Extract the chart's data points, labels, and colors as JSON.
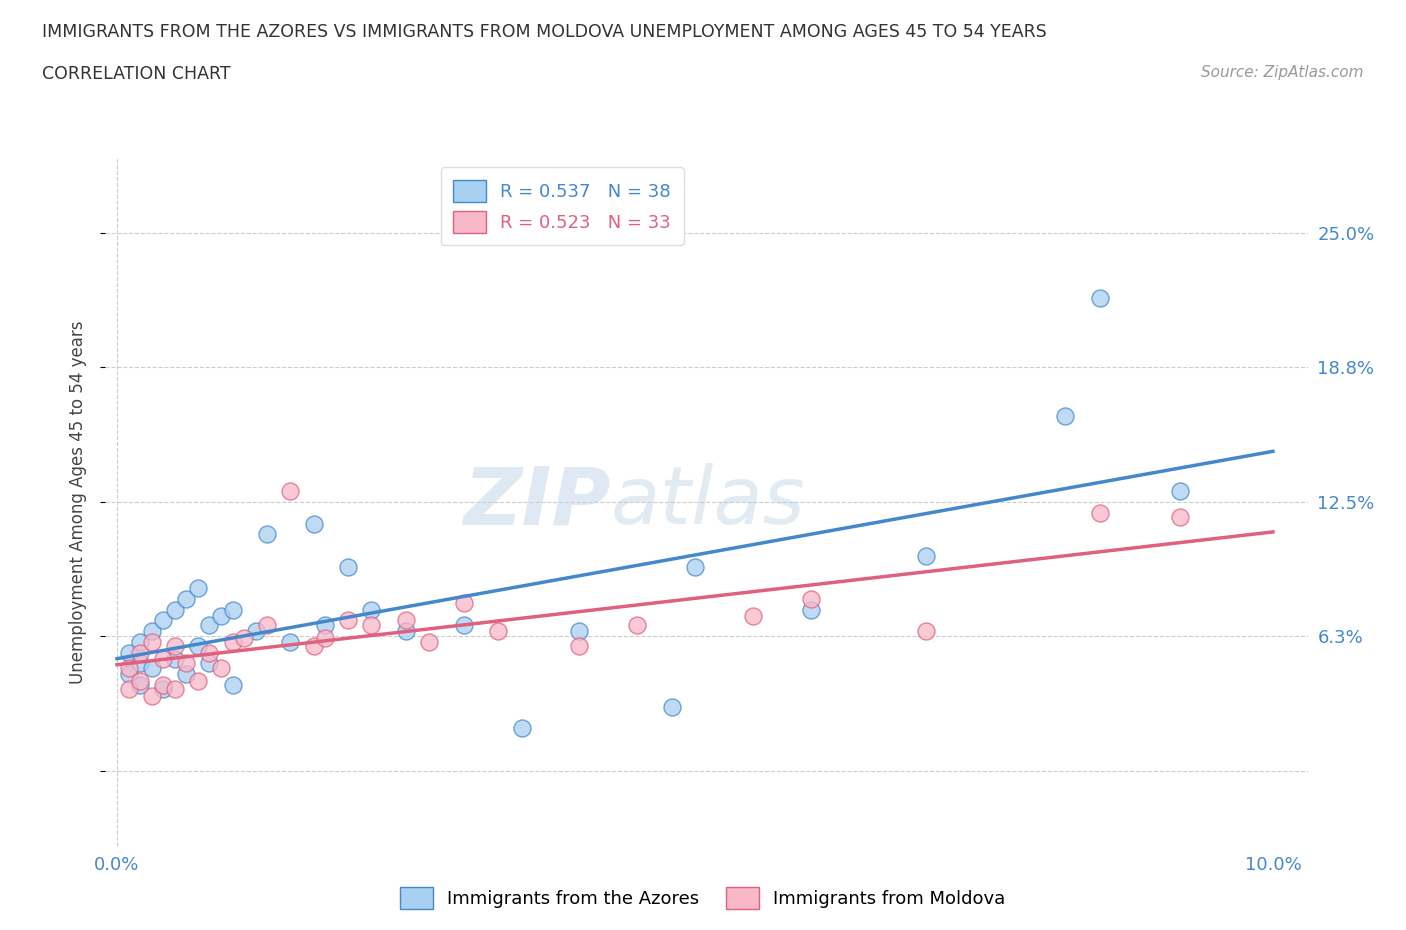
{
  "title_line1": "IMMIGRANTS FROM THE AZORES VS IMMIGRANTS FROM MOLDOVA UNEMPLOYMENT AMONG AGES 45 TO 54 YEARS",
  "title_line2": "CORRELATION CHART",
  "source": "Source: ZipAtlas.com",
  "ylabel": "Unemployment Among Ages 45 to 54 years",
  "xlim": [
    -0.001,
    0.103
  ],
  "ylim": [
    -0.035,
    0.285
  ],
  "ytick_vals": [
    0.0,
    0.063,
    0.125,
    0.188,
    0.25
  ],
  "ytick_labels": [
    "",
    "6.3%",
    "12.5%",
    "18.8%",
    "25.0%"
  ],
  "xtick_vals": [
    0.0,
    0.1
  ],
  "xtick_labels": [
    "0.0%",
    "10.0%"
  ],
  "color_azores": "#a8d0f0",
  "color_moldova": "#f8b8c8",
  "line_color_azores": "#4488cc",
  "line_color_moldova": "#e06080",
  "r_azores": 0.537,
  "n_azores": 38,
  "r_moldova": 0.523,
  "n_moldova": 33,
  "watermark_zip": "ZIP",
  "watermark_atlas": "atlas",
  "legend_label_azores": "Immigrants from the Azores",
  "legend_label_moldova": "Immigrants from Moldova",
  "azores_x": [
    0.001,
    0.001,
    0.002,
    0.002,
    0.002,
    0.003,
    0.003,
    0.004,
    0.004,
    0.005,
    0.005,
    0.006,
    0.006,
    0.007,
    0.007,
    0.008,
    0.008,
    0.009,
    0.01,
    0.01,
    0.012,
    0.013,
    0.015,
    0.017,
    0.018,
    0.02,
    0.022,
    0.025,
    0.03,
    0.035,
    0.04,
    0.048,
    0.05,
    0.06,
    0.07,
    0.082,
    0.085,
    0.092
  ],
  "azores_y": [
    0.045,
    0.055,
    0.05,
    0.06,
    0.04,
    0.065,
    0.048,
    0.07,
    0.038,
    0.075,
    0.052,
    0.08,
    0.045,
    0.085,
    0.058,
    0.068,
    0.05,
    0.072,
    0.075,
    0.04,
    0.065,
    0.11,
    0.06,
    0.115,
    0.068,
    0.095,
    0.075,
    0.065,
    0.068,
    0.02,
    0.065,
    0.03,
    0.095,
    0.075,
    0.1,
    0.165,
    0.22,
    0.13
  ],
  "moldova_x": [
    0.001,
    0.001,
    0.002,
    0.002,
    0.003,
    0.003,
    0.004,
    0.004,
    0.005,
    0.005,
    0.006,
    0.007,
    0.008,
    0.009,
    0.01,
    0.011,
    0.013,
    0.015,
    0.017,
    0.018,
    0.02,
    0.022,
    0.025,
    0.027,
    0.03,
    0.033,
    0.04,
    0.045,
    0.055,
    0.06,
    0.07,
    0.085,
    0.092
  ],
  "moldova_y": [
    0.038,
    0.048,
    0.042,
    0.055,
    0.035,
    0.06,
    0.04,
    0.052,
    0.038,
    0.058,
    0.05,
    0.042,
    0.055,
    0.048,
    0.06,
    0.062,
    0.068,
    0.13,
    0.058,
    0.062,
    0.07,
    0.068,
    0.07,
    0.06,
    0.078,
    0.065,
    0.058,
    0.068,
    0.072,
    0.08,
    0.065,
    0.12,
    0.118
  ]
}
